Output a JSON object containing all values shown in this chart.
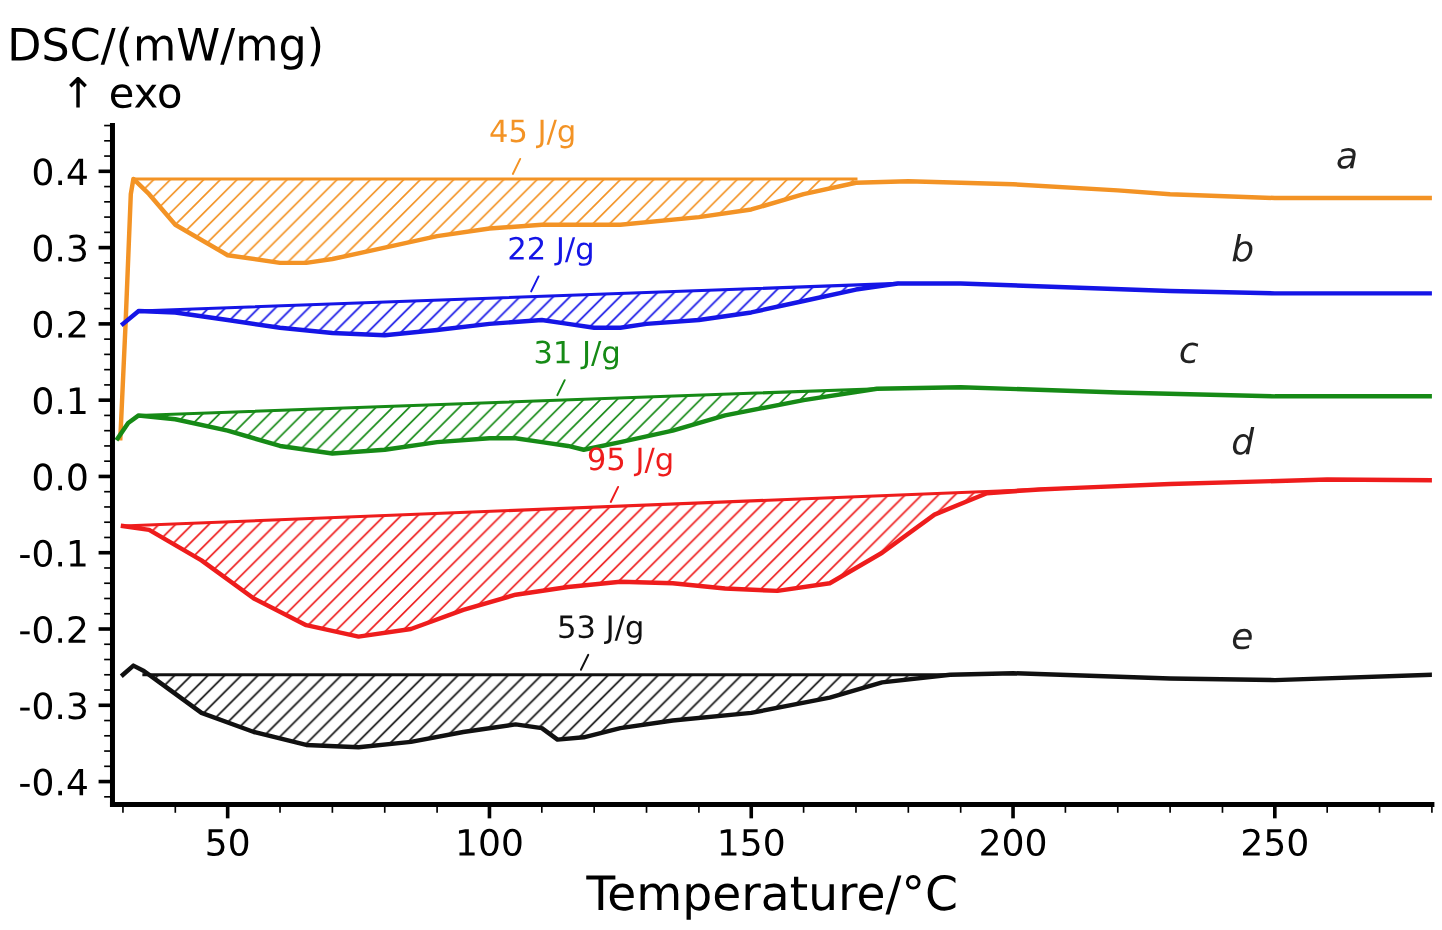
{
  "chart_data": {
    "type": "line",
    "ylabel": "DSC/(mW/mg)",
    "xlabel": "Temperature/°C",
    "xlim": [
      28,
      280
    ],
    "ylim": [
      -0.43,
      0.46
    ],
    "xticks": [
      50,
      100,
      150,
      200,
      250
    ],
    "yticks": [
      {
        "value": -0.4,
        "label": "-0.4"
      },
      {
        "value": -0.3,
        "label": "-0.3"
      },
      {
        "value": -0.2,
        "label": "-0.2"
      },
      {
        "value": -0.1,
        "label": "-0.1"
      },
      {
        "value": 0,
        "label": "0.0"
      },
      {
        "value": 0.1,
        "label": "0.1"
      },
      {
        "value": 0.2,
        "label": "0.2"
      },
      {
        "value": 0.3,
        "label": "0.3"
      },
      {
        "value": 0.4,
        "label": "0.4"
      }
    ],
    "grid": false,
    "annotations": [
      "↑ exo",
      {
        "text": "45 J/g",
        "x": 104,
        "y": 0.39
      },
      {
        "text": "22 J/g",
        "x": 107.5,
        "y": 0.236
      },
      {
        "text": "31 J/g",
        "x": 112.5,
        "y": 0.1
      },
      {
        "text": "95 J/g",
        "x": 122.7,
        "y": -0.04
      },
      {
        "text": "53 J/g",
        "x": 117,
        "y": -0.26
      }
    ],
    "series": [
      {
        "name": "a",
        "color": "#f39325",
        "x": [
          29.5,
          30.5,
          31.5,
          32,
          35,
          40,
          50,
          60,
          65,
          70,
          80,
          90,
          100,
          110,
          125,
          140,
          150,
          160,
          170,
          180,
          200,
          220,
          230,
          250,
          265,
          280
        ],
        "values": [
          0.05,
          0.2,
          0.37,
          0.39,
          0.37,
          0.33,
          0.29,
          0.28,
          0.28,
          0.285,
          0.3,
          0.315,
          0.325,
          0.33,
          0.33,
          0.34,
          0.35,
          0.37,
          0.385,
          0.387,
          0.383,
          0.375,
          0.37,
          0.365,
          0.365,
          0.365
        ],
        "upper": [
          null,
          null,
          null,
          0.39,
          0.39,
          0.39,
          0.39,
          0.39,
          0.39,
          0.39,
          0.39,
          0.39,
          0.39,
          0.39,
          0.39,
          0.39,
          0.39,
          0.39,
          0.39,
          null,
          null,
          null,
          null,
          null,
          null,
          null
        ],
        "lower": [
          null,
          null,
          null,
          0.39,
          0.37,
          0.33,
          0.29,
          0.28,
          0.28,
          0.285,
          0.3,
          0.315,
          0.325,
          0.33,
          0.33,
          0.34,
          0.35,
          0.37,
          0.385,
          null,
          null,
          null,
          null,
          null,
          null,
          null
        ]
      },
      {
        "name": "b",
        "color": "#1515e6",
        "x": [
          30,
          33,
          40,
          50,
          60,
          70,
          80,
          90,
          100,
          110,
          115,
          120,
          125,
          130,
          140,
          150,
          160,
          170,
          178,
          190,
          210,
          230,
          250,
          280
        ],
        "values": [
          0.2,
          0.217,
          0.215,
          0.205,
          0.195,
          0.188,
          0.185,
          0.192,
          0.2,
          0.205,
          0.2,
          0.195,
          0.195,
          0.2,
          0.205,
          0.215,
          0.23,
          0.245,
          0.253,
          0.253,
          0.248,
          0.243,
          0.24,
          0.24
        ],
        "upper": [
          null,
          0.217,
          0.219,
          0.221,
          0.224,
          0.226,
          0.229,
          0.231,
          0.234,
          0.236,
          0.237,
          0.239,
          0.24,
          0.241,
          0.244,
          0.246,
          0.249,
          0.251,
          0.253,
          null,
          null,
          null,
          null,
          null
        ],
        "lower": [
          null,
          0.217,
          0.215,
          0.205,
          0.195,
          0.188,
          0.185,
          0.192,
          0.2,
          0.205,
          0.2,
          0.195,
          0.195,
          0.2,
          0.205,
          0.215,
          0.23,
          0.245,
          0.253,
          null,
          null,
          null,
          null,
          null
        ]
      },
      {
        "name": "c",
        "color": "#168a16",
        "x": [
          29,
          31,
          33,
          40,
          50,
          60,
          70,
          80,
          90,
          100,
          105,
          110,
          115,
          118,
          125,
          135,
          145,
          160,
          174,
          190,
          220,
          250,
          280
        ],
        "values": [
          0.05,
          0.07,
          0.08,
          0.075,
          0.06,
          0.04,
          0.03,
          0.035,
          0.045,
          0.05,
          0.05,
          0.045,
          0.04,
          0.035,
          0.045,
          0.06,
          0.08,
          0.1,
          0.115,
          0.117,
          0.11,
          0.105,
          0.105
        ],
        "upper": [
          null,
          null,
          0.08,
          0.082,
          0.084,
          0.087,
          0.089,
          0.092,
          0.094,
          0.097,
          0.098,
          0.099,
          0.1,
          0.101,
          0.103,
          0.105,
          0.108,
          0.112,
          0.115,
          null,
          null,
          null,
          null
        ],
        "lower": [
          null,
          null,
          0.08,
          0.075,
          0.06,
          0.04,
          0.03,
          0.035,
          0.045,
          0.05,
          0.05,
          0.045,
          0.04,
          0.035,
          0.045,
          0.06,
          0.08,
          0.1,
          0.115,
          null,
          null,
          null,
          null
        ]
      },
      {
        "name": "d",
        "color": "#ee1c1c",
        "x": [
          30,
          35,
          45,
          55,
          65,
          75,
          85,
          95,
          105,
          115,
          125,
          135,
          145,
          155,
          165,
          175,
          185,
          195,
          205,
          212,
          230,
          260,
          280
        ],
        "values": [
          -0.065,
          -0.07,
          -0.11,
          -0.16,
          -0.195,
          -0.21,
          -0.2,
          -0.175,
          -0.155,
          -0.145,
          -0.138,
          -0.14,
          -0.147,
          -0.15,
          -0.14,
          -0.1,
          -0.05,
          -0.022,
          -0.017,
          -0.015,
          -0.01,
          -0.004,
          -0.005
        ],
        "upper": [
          -0.065,
          -0.064,
          -0.061,
          -0.058,
          -0.055,
          -0.053,
          -0.05,
          -0.047,
          -0.044,
          -0.042,
          -0.039,
          -0.036,
          -0.033,
          -0.031,
          -0.028,
          -0.025,
          -0.022,
          -0.02,
          -0.017,
          -0.015,
          null,
          null,
          null
        ],
        "lower": [
          -0.065,
          -0.07,
          -0.11,
          -0.16,
          -0.195,
          -0.21,
          -0.2,
          -0.175,
          -0.155,
          -0.145,
          -0.138,
          -0.14,
          -0.147,
          -0.15,
          -0.14,
          -0.1,
          -0.05,
          -0.022,
          -0.017,
          -0.015,
          null,
          null,
          null
        ]
      },
      {
        "name": "e",
        "color": "#111111",
        "x": [
          30,
          32,
          34,
          37,
          45,
          55,
          65,
          75,
          85,
          95,
          105,
          110,
          113,
          118,
          125,
          135,
          150,
          165,
          175,
          188,
          200,
          230,
          250,
          280
        ],
        "values": [
          -0.26,
          -0.248,
          -0.255,
          -0.27,
          -0.31,
          -0.335,
          -0.352,
          -0.355,
          -0.348,
          -0.335,
          -0.325,
          -0.33,
          -0.345,
          -0.342,
          -0.33,
          -0.32,
          -0.31,
          -0.29,
          -0.27,
          -0.26,
          -0.258,
          -0.265,
          -0.267,
          -0.26
        ],
        "upper": [
          null,
          null,
          -0.26,
          -0.26,
          -0.26,
          -0.26,
          -0.26,
          -0.26,
          -0.26,
          -0.26,
          -0.26,
          -0.26,
          -0.26,
          -0.26,
          -0.26,
          -0.26,
          -0.26,
          -0.26,
          -0.26,
          -0.26,
          null,
          null,
          null,
          null
        ],
        "lower": [
          null,
          null,
          -0.255,
          -0.27,
          -0.31,
          -0.335,
          -0.352,
          -0.355,
          -0.348,
          -0.335,
          -0.325,
          -0.33,
          -0.345,
          -0.342,
          -0.33,
          -0.32,
          -0.31,
          -0.29,
          -0.27,
          -0.26,
          null,
          null,
          null,
          null
        ]
      },
      {
        "color": "#f39325",
        "x": [
          32,
          170
        ],
        "values": [
          0.39,
          0.39
        ]
      },
      {
        "color": "#1515e6",
        "x": [
          33,
          178
        ],
        "values": [
          0.217,
          0.253
        ]
      },
      {
        "color": "#168a16",
        "x": [
          33,
          174
        ],
        "values": [
          0.08,
          0.115
        ]
      },
      {
        "color": "#ee1c1c",
        "x": [
          30,
          212
        ],
        "values": [
          -0.065,
          -0.015
        ]
      },
      {
        "color": "#111111",
        "x": [
          34,
          188
        ],
        "values": [
          -0.26,
          -0.26
        ]
      }
    ]
  }
}
